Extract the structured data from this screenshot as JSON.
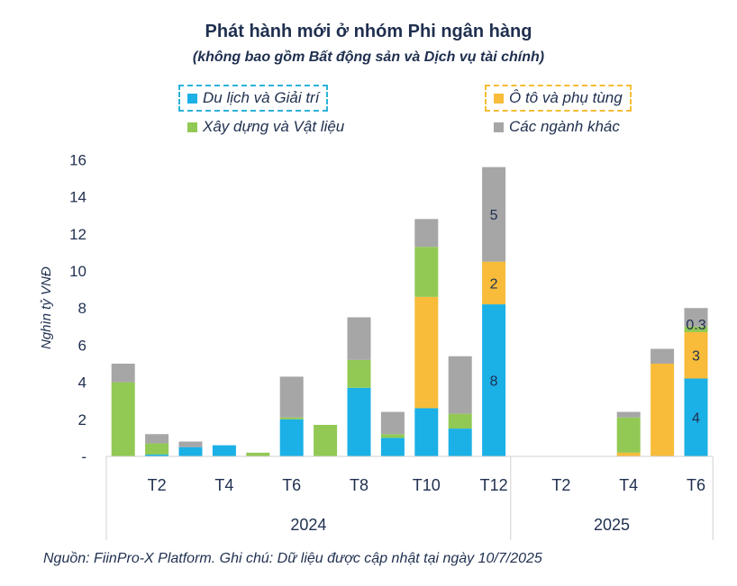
{
  "chart_data": {
    "type": "bar",
    "stacked": true,
    "title": "Phát hành mới ở nhóm Phi ngân hàng",
    "subtitle": "(không bao gồm Bất động sản và Dịch vụ tài chính)",
    "ylabel": "Nghìn tỷ VNĐ",
    "ylim": [
      0,
      16
    ],
    "yticks": [
      {
        "value": 0,
        "label": "-"
      },
      {
        "value": 2,
        "label": "2"
      },
      {
        "value": 4,
        "label": "4"
      },
      {
        "value": 6,
        "label": "6"
      },
      {
        "value": 8,
        "label": "8"
      },
      {
        "value": 10,
        "label": "10"
      },
      {
        "value": 12,
        "label": "12"
      },
      {
        "value": 14,
        "label": "14"
      },
      {
        "value": 16,
        "label": "16"
      }
    ],
    "categories": [
      "T1/2024",
      "T2/2024",
      "T3/2024",
      "T4/2024",
      "T5/2024",
      "T6/2024",
      "T7/2024",
      "T8/2024",
      "T9/2024",
      "T10/2024",
      "T11/2024",
      "T12/2024",
      "T1/2025",
      "T2/2025",
      "T3/2025",
      "T4/2025",
      "T5/2025",
      "T6/2025"
    ],
    "tick_labels": [
      "",
      "T2",
      "",
      "T4",
      "",
      "T6",
      "",
      "T8",
      "",
      "T10",
      "",
      "T12",
      "",
      "T2",
      "",
      "T4",
      "",
      "T6"
    ],
    "groups": [
      {
        "label": "2024",
        "start": 0,
        "count": 12
      },
      {
        "label": "2025",
        "start": 12,
        "count": 6
      }
    ],
    "series": [
      {
        "name": "Du lịch và Giải trí",
        "color": "#1bb0e6",
        "values": [
          0,
          0.1,
          0.5,
          0.6,
          0,
          2.0,
          0,
          3.7,
          1.0,
          2.6,
          1.5,
          8.2,
          0,
          0,
          0,
          0,
          0,
          4.2
        ]
      },
      {
        "name": "Ô tô và phụ tùng",
        "color": "#f8bc3a",
        "values": [
          0,
          0,
          0,
          0,
          0,
          0,
          0,
          0,
          0,
          6.0,
          0,
          2.3,
          0,
          0,
          0,
          0.2,
          5.0,
          2.5
        ]
      },
      {
        "name": "Xây dựng và Vật liệu",
        "color": "#92c954",
        "values": [
          4.0,
          0.6,
          0,
          0,
          0.2,
          0.1,
          1.7,
          1.5,
          0.2,
          2.7,
          0.8,
          0,
          0,
          0,
          0,
          1.9,
          0,
          0.3
        ]
      },
      {
        "name": "Các ngành khác",
        "color": "#a6a6a6",
        "values": [
          1.0,
          0.5,
          0.3,
          0,
          0,
          2.2,
          0,
          2.3,
          1.2,
          1.5,
          3.1,
          5.1,
          0,
          0,
          0,
          0.3,
          0.8,
          1.0
        ]
      }
    ],
    "data_labels": [
      {
        "category": 11,
        "series": 0,
        "text": "8"
      },
      {
        "category": 11,
        "series": 1,
        "text": "2"
      },
      {
        "category": 11,
        "series": 3,
        "text": "5"
      },
      {
        "category": 17,
        "series": 0,
        "text": "4"
      },
      {
        "category": 17,
        "series": 1,
        "text": "3"
      },
      {
        "category": 17,
        "series": 2,
        "text": "0.3"
      }
    ]
  },
  "legend": {
    "tourism": "Du lịch và Giải trí",
    "auto": "Ô tô và phụ tùng",
    "construction": "Xây dựng và Vật liệu",
    "other": "Các ngành khác"
  },
  "source": "Nguồn: FiinPro-X Platform. Ghi chú: Dữ liệu được cập nhật tại ngày 10/7/2025"
}
